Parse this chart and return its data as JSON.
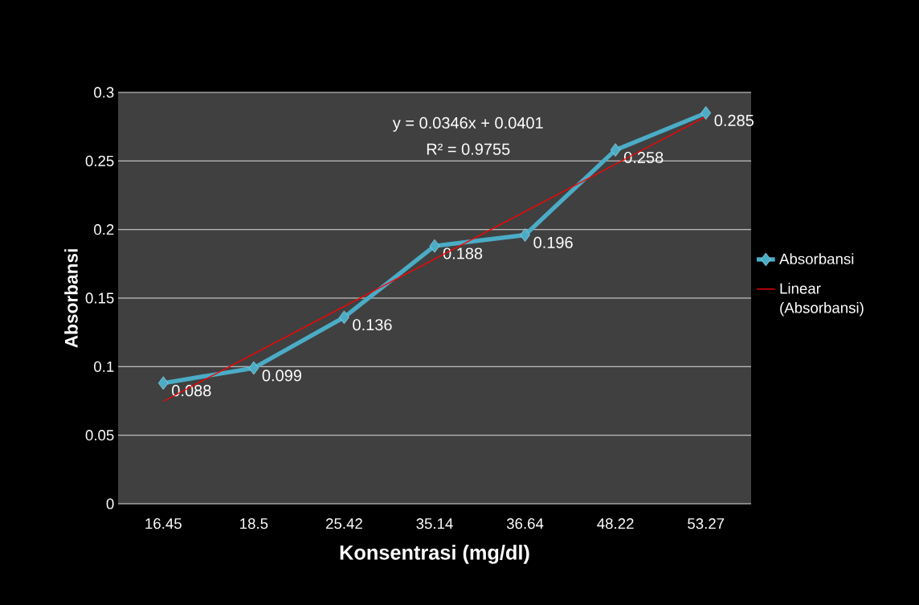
{
  "chart_data": {
    "type": "line",
    "xlabel": "Konsentrasi (mg/dl)",
    "ylabel": "Absorbansi",
    "categories": [
      "16.45",
      "18.5",
      "25.42",
      "35.14",
      "36.64",
      "48.22",
      "53.27"
    ],
    "series": [
      {
        "name": "Absorbansi",
        "color": "#4bacc6",
        "values": [
          0.088,
          0.099,
          0.136,
          0.188,
          0.196,
          0.258,
          0.285
        ],
        "marker": "diamond",
        "data_labels": true
      },
      {
        "name": "Linear (Absorbansi)",
        "color": "#ff0000",
        "values": [
          0.0747,
          0.1093,
          0.1439,
          0.1785,
          0.2131,
          0.2477,
          0.2823
        ],
        "marker": "none"
      }
    ],
    "ylim": [
      0,
      0.3
    ],
    "yticks": [
      0,
      0.05,
      0.1,
      0.15,
      0.2,
      0.25,
      0.3
    ],
    "grid": "y",
    "legend": "right",
    "annotations": [
      "y = 0.0346x + 0.0401",
      "R² = 0.9755"
    ]
  }
}
